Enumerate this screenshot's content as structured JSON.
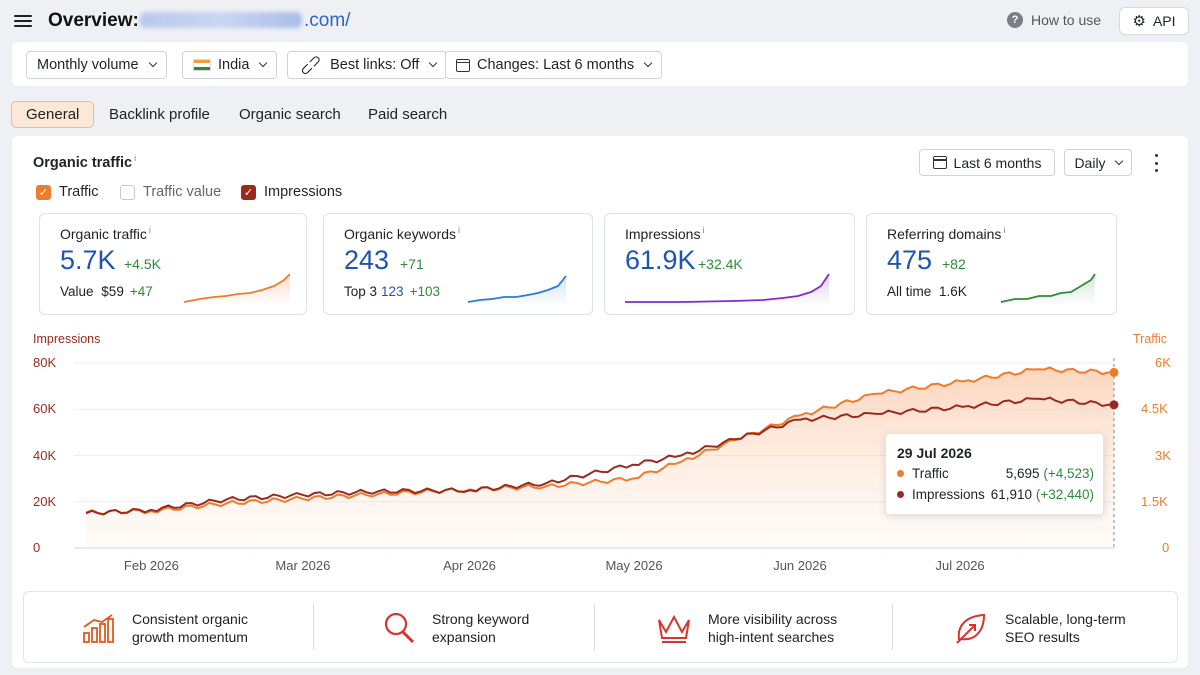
{
  "header": {
    "menu_icon": "hamburger-menu-icon",
    "title": "Overview:",
    "domain_suffix": ".com/",
    "how_to_use": "How to use",
    "api_label": "API"
  },
  "filters": {
    "volume": "Monthly volume",
    "country": "India",
    "best_links": "Best links: Off",
    "changes": "Changes: Last 6 months"
  },
  "tabs": [
    {
      "label": "General",
      "active": true
    },
    {
      "label": "Backlink profile",
      "active": false
    },
    {
      "label": "Organic search",
      "active": false
    },
    {
      "label": "Paid search",
      "active": false
    }
  ],
  "panel": {
    "title": "Organic traffic",
    "info": "i",
    "range": "Last 6 months",
    "granularity": "Daily",
    "checkboxes": [
      {
        "label": "Traffic",
        "checked": true,
        "color": "#ef7b2c"
      },
      {
        "label": "Traffic value",
        "checked": false
      },
      {
        "label": "Impressions",
        "checked": true,
        "color": "#9b2a1e"
      }
    ]
  },
  "cards": [
    {
      "label": "Organic traffic",
      "value": "5.7K",
      "delta": "+4.5K",
      "sub_label": "Value",
      "sub_value": "$59",
      "sub_delta": "+47",
      "color": "#ef7b2c"
    },
    {
      "label": "Organic keywords",
      "value": "243",
      "delta": "+71",
      "sub_label": "Top 3",
      "sub_value": "123",
      "sub_delta": "+103",
      "color": "#2b7bd6"
    },
    {
      "label": "Impressions",
      "value": "61.9K",
      "delta": "+32.4K",
      "color": "#7b2ec9"
    },
    {
      "label": "Referring domains",
      "value": "475",
      "delta": "+82",
      "sub_label": "All time",
      "sub_value": "1.6K",
      "color": "#2e8b3a"
    }
  ],
  "chart_data": {
    "type": "line",
    "left_axis_label": "Impressions",
    "right_axis_label": "Traffic",
    "left_ticks": [
      "0",
      "20K",
      "40K",
      "60K",
      "80K"
    ],
    "right_ticks": [
      "0",
      "1.5K",
      "3K",
      "4.5K",
      "6K"
    ],
    "left_ylim": [
      0,
      80000
    ],
    "right_ylim": [
      0,
      6000
    ],
    "x_ticks": [
      "Feb 2026",
      "Mar 2026",
      "Apr 2026",
      "May 2026",
      "Jun 2026",
      "Jul 2026"
    ],
    "x": [
      "Jan 20 2026",
      "Feb 1 2026",
      "Feb 15 2026",
      "Mar 1 2026",
      "Mar 15 2026",
      "Apr 1 2026",
      "Apr 15 2026",
      "May 1 2026",
      "May 10 2026",
      "May 20 2026",
      "Jun 1 2026",
      "Jun 15 2026",
      "Jul 1 2026",
      "Jul 15 2026",
      "Jul 29 2026"
    ],
    "series": [
      {
        "name": "Impressions",
        "axis": "left",
        "color": "#9b2a1e",
        "values": [
          15000,
          16500,
          21000,
          23000,
          24500,
          25000,
          28000,
          36000,
          40000,
          47000,
          55500,
          58000,
          61000,
          64500,
          61910
        ]
      },
      {
        "name": "Traffic",
        "axis": "right",
        "color": "#ef7b2c",
        "values": [
          1150,
          1200,
          1450,
          1600,
          1750,
          1900,
          2000,
          2250,
          2800,
          3500,
          4300,
          5000,
          5400,
          5800,
          5695
        ]
      }
    ],
    "tooltip": {
      "date": "29 Jul 2026",
      "rows": [
        {
          "name": "Traffic",
          "value": "5,695",
          "delta": "(+4,523)",
          "color": "#ef7b2c"
        },
        {
          "name": "Impressions",
          "value": "61,910",
          "delta": "(+32,440)",
          "color": "#9b2a1e"
        }
      ]
    }
  },
  "features": [
    {
      "icon": "bar-growth-icon",
      "line1": "Consistent organic",
      "line2": "growth momentum"
    },
    {
      "icon": "magnifier-icon",
      "line1": "Strong keyword",
      "line2": "expansion"
    },
    {
      "icon": "crown-icon",
      "line1": "More visibility across",
      "line2": "high-intent searches"
    },
    {
      "icon": "leaf-growth-icon",
      "line1": "Scalable, long-term",
      "line2": "SEO results"
    }
  ]
}
